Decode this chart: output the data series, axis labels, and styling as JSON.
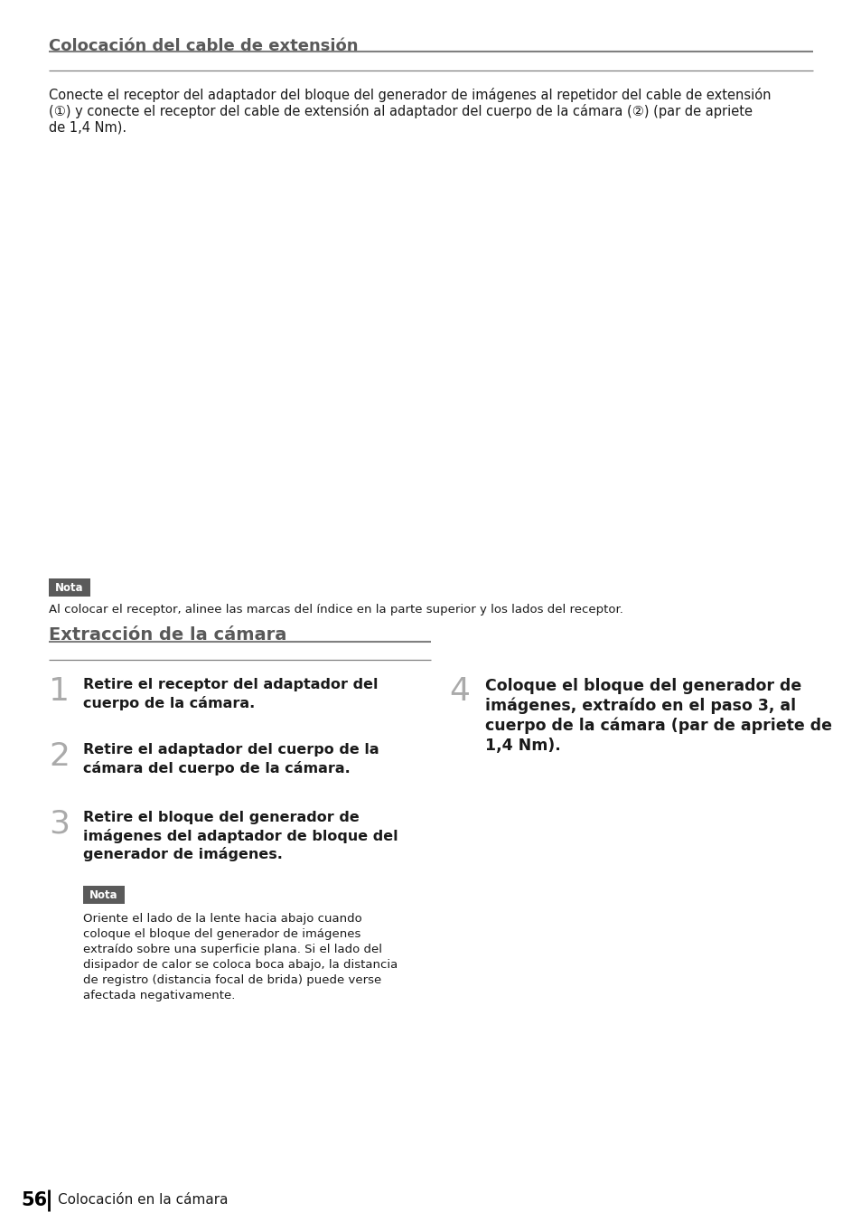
{
  "bg_color": "#ffffff",
  "page_number": "56",
  "footer_text": "Colocación en la cámara",
  "section1_title": "Colocación del cable de extensión",
  "section1_body_line1": "Conecte el receptor del adaptador del bloque del generador de imágenes al repetidor del cable de extensión",
  "section1_body_line2": "(①) y conecte el receptor del cable de extensión al adaptador del cuerpo de la cámara (②) (par de apriete",
  "section1_body_line3": "de 1,4 Nm).",
  "note1_label": "Nota",
  "note1_text": "Al colocar el receptor, alinee las marcas del índice en la parte superior y los lados del receptor.",
  "section2_title": "Extracción de la cámara",
  "step1_num": "1",
  "step1_line1": "Retire el receptor del adaptador del",
  "step1_line2": "cuerpo de la cámara.",
  "step2_num": "2",
  "step2_line1": "Retire el adaptador del cuerpo de la",
  "step2_line2": "cámara del cuerpo de la cámara.",
  "step3_num": "3",
  "step3_line1": "Retire el bloque del generador de",
  "step3_line2": "imágenes del adaptador de bloque del",
  "step3_line3": "generador de imágenes.",
  "note2_label": "Nota",
  "note2_line1": "Oriente el lado de la lente hacia abajo cuando",
  "note2_line2": "coloque el bloque del generador de imágenes",
  "note2_line3": "extraído sobre una superficie plana. Si el lado del",
  "note2_line4": "disipador de calor se coloca boca abajo, la distancia",
  "note2_line5": "de registro (distancia focal de brida) puede verse",
  "note2_line6": "afectada negativamente.",
  "step4_num": "4",
  "step4_line1": "Coloque el bloque del generador de",
  "step4_line2": "imágenes, extraído en el paso 3, al",
  "step4_line3": "cuerpo de la cámara (par de apriete de",
  "step4_line4": "1,4 Nm).",
  "note_bg": "#5a5a5a",
  "note_fg": "#ffffff",
  "title_color": "#595959",
  "step_num_color": "#aaaaaa",
  "text_color": "#1a1a1a",
  "line_color": "#808080",
  "body_fontsize": 10.5,
  "title_fontsize": 13,
  "step_num_fontsize": 26,
  "step_text_fontsize": 11.5,
  "note_label_fontsize": 8.5,
  "note_text_fontsize": 9.5,
  "footer_num_fontsize": 15,
  "footer_text_fontsize": 11
}
